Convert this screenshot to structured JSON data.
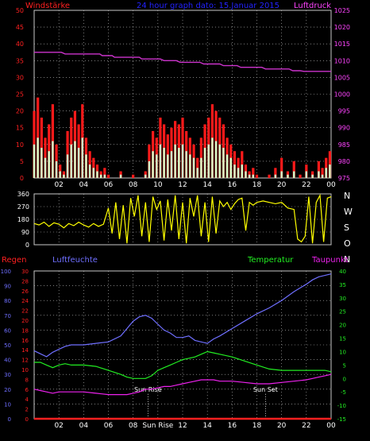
{
  "header": {
    "left_label": "Windstärke",
    "title": "24 hour graph dato: 15.Januar 2015",
    "right_label": "Luftdruck"
  },
  "direction_labels": [
    "N",
    "W",
    "S",
    "O",
    "N"
  ],
  "bottom_labels": {
    "regen": "Regen",
    "luftfeuchte": "Luftfeuchte",
    "temperatur": "Temperatur",
    "taupunkt": "Taupunkt",
    "sun_rise": "Sun Rise",
    "sun_set": "Sun Set"
  },
  "x_ticks": [
    "02",
    "04",
    "06",
    "08",
    "10",
    "12",
    "14",
    "16",
    "18",
    "20",
    "22",
    "00"
  ],
  "x_ticks_bottom": [
    "02",
    "04",
    "06",
    "08",
    "Sun Rise",
    "12",
    "14",
    "16",
    "18",
    "20",
    "22",
    "00"
  ],
  "colors": {
    "background": "#000000",
    "grid": "#c8c8c8",
    "title": "#2222ff",
    "wind_label": "#ff2020",
    "pressure": "#cc33cc",
    "pressure_axis": "#ff44ff",
    "gust": "#ff1a1a",
    "wind": "#ccffcc",
    "direction": "#ffff00",
    "humidity": "#6f6fff",
    "humidity_axis": "#6f6fff",
    "temperature": "#22ee22",
    "dewpoint": "#ee22ee",
    "rain": "#ff2020"
  },
  "chart_data": [
    {
      "type": "line",
      "name": "wind-pressure",
      "x_ticks": [
        "02",
        "04",
        "06",
        "08",
        "10",
        "12",
        "14",
        "16",
        "18",
        "20",
        "22",
        "00"
      ],
      "y_left_ticks": [
        0,
        5,
        10,
        15,
        20,
        25,
        30,
        35,
        40,
        45,
        50
      ],
      "y_right_ticks": [
        975,
        980,
        985,
        990,
        995,
        1000,
        1005,
        1010,
        1015,
        1020,
        1025
      ],
      "ylim_left": [
        0,
        50
      ],
      "ylim_right": [
        975,
        1025
      ],
      "xlim": [
        0,
        24
      ],
      "grid": true,
      "series": [
        {
          "name": "Luftdruck",
          "axis": "right",
          "x": [
            0,
            2.2,
            2.5,
            5.3,
            5.5,
            6.3,
            6.5,
            8.5,
            8.7,
            10.2,
            10.5,
            11.5,
            11.8,
            13.4,
            13.7,
            15,
            15.3,
            16.4,
            16.7,
            18.4,
            18.7,
            20.6,
            20.9,
            21.5,
            21.8,
            24
          ],
          "values": [
            1012.5,
            1012.5,
            1012,
            1012,
            1011.5,
            1011.5,
            1011,
            1011,
            1010.5,
            1010.5,
            1010,
            1010,
            1009.5,
            1009.5,
            1009,
            1009,
            1008.5,
            1008.5,
            1008,
            1008,
            1007.5,
            1007.5,
            1007,
            1007,
            1006.8,
            1006.8
          ]
        },
        {
          "name": "Windböen",
          "axis": "left",
          "x": [
            0,
            0.3,
            0.6,
            0.9,
            1.2,
            1.5,
            1.8,
            2.1,
            2.4,
            2.7,
            3,
            3.3,
            3.6,
            3.9,
            4.2,
            4.5,
            4.8,
            5.1,
            5.4,
            5.7,
            6,
            6.5,
            7,
            7.5,
            8,
            8.5,
            9,
            9.3,
            9.6,
            9.9,
            10.2,
            10.5,
            10.8,
            11.1,
            11.4,
            11.7,
            12,
            12.3,
            12.6,
            12.9,
            13.2,
            13.5,
            13.8,
            14.1,
            14.4,
            14.7,
            15,
            15.3,
            15.6,
            15.9,
            16.2,
            16.5,
            16.8,
            17.1,
            17.4,
            17.7,
            18,
            18.5,
            19,
            19.5,
            20,
            20.5,
            21,
            21.5,
            22,
            22.5,
            23,
            23.3,
            23.6,
            23.9
          ],
          "values": [
            20,
            24,
            18,
            12,
            16,
            22,
            10,
            4,
            2,
            14,
            18,
            20,
            16,
            22,
            12,
            8,
            6,
            4,
            2,
            3,
            1,
            0,
            2,
            0,
            1,
            0,
            2,
            10,
            14,
            12,
            18,
            16,
            13,
            15,
            17,
            16,
            18,
            14,
            12,
            10,
            6,
            12,
            16,
            18,
            22,
            20,
            18,
            16,
            12,
            10,
            8,
            6,
            8,
            4,
            2,
            3,
            1,
            0,
            1,
            3,
            6,
            2,
            5,
            1,
            4,
            2,
            5,
            3,
            6,
            8
          ]
        },
        {
          "name": "Wind",
          "axis": "left",
          "x": [
            0,
            0.3,
            0.6,
            0.9,
            1.2,
            1.5,
            1.8,
            2.1,
            2.4,
            2.7,
            3,
            3.3,
            3.6,
            3.9,
            4.2,
            4.5,
            4.8,
            5.1,
            5.4,
            5.7,
            6,
            6.5,
            7,
            7.5,
            8,
            8.5,
            9,
            9.3,
            9.6,
            9.9,
            10.2,
            10.5,
            10.8,
            11.1,
            11.4,
            11.7,
            12,
            12.3,
            12.6,
            12.9,
            13.2,
            13.5,
            13.8,
            14.1,
            14.4,
            14.7,
            15,
            15.3,
            15.6,
            15.9,
            16.2,
            16.5,
            16.8,
            17.1,
            17.4,
            17.7,
            18,
            18.5,
            19,
            19.5,
            20,
            20.5,
            21,
            21.5,
            22,
            22.5,
            23,
            23.3,
            23.6,
            23.9
          ],
          "values": [
            10,
            12,
            9,
            6,
            8,
            11,
            5,
            2,
            1,
            7,
            10,
            11,
            9,
            12,
            7,
            4,
            3,
            2,
            1,
            1,
            0,
            0,
            1,
            0,
            0,
            0,
            1,
            5,
            8,
            7,
            10,
            9,
            7,
            8,
            10,
            9,
            10,
            8,
            7,
            6,
            3,
            6,
            9,
            10,
            12,
            11,
            10,
            9,
            7,
            6,
            4,
            3,
            4,
            2,
            1,
            1,
            0,
            0,
            0,
            1,
            2,
            1,
            2,
            0,
            2,
            1,
            2,
            1,
            3,
            4
          ]
        }
      ]
    },
    {
      "type": "line",
      "name": "wind-direction",
      "y_left_ticks": [
        0,
        90,
        180,
        270,
        360
      ],
      "ylim": [
        0,
        360
      ],
      "xlim": [
        0,
        24
      ],
      "grid": true,
      "series": [
        {
          "name": "Windrichtung",
          "x": [
            0,
            0.4,
            0.8,
            1.2,
            1.6,
            2,
            2.4,
            2.8,
            3.2,
            3.6,
            4,
            4.4,
            4.8,
            5.2,
            5.6,
            6,
            6.3,
            6.6,
            6.9,
            7.2,
            7.5,
            7.8,
            8.1,
            8.4,
            8.7,
            9,
            9.3,
            9.6,
            9.9,
            10.2,
            10.5,
            10.8,
            11.1,
            11.4,
            11.7,
            12,
            12.3,
            12.6,
            12.9,
            13.2,
            13.5,
            13.8,
            14.1,
            14.4,
            14.7,
            15,
            15.3,
            15.6,
            15.9,
            16.2,
            16.5,
            16.8,
            17.1,
            17.4,
            17.7,
            18,
            18.5,
            19,
            19.5,
            20,
            20.5,
            21,
            21.3,
            21.6,
            21.9,
            22.2,
            22.5,
            22.8,
            23.1,
            23.4,
            23.7,
            24
          ],
          "values": [
            150,
            140,
            160,
            130,
            155,
            145,
            120,
            150,
            135,
            160,
            140,
            125,
            150,
            130,
            145,
            260,
            80,
            300,
            40,
            280,
            10,
            330,
            200,
            350,
            60,
            300,
            20,
            340,
            250,
            310,
            30,
            320,
            100,
            350,
            40,
            300,
            10,
            330,
            200,
            350,
            60,
            300,
            20,
            340,
            80,
            310,
            270,
            300,
            250,
            290,
            320,
            330,
            100,
            300,
            280,
            300,
            310,
            300,
            290,
            300,
            260,
            250,
            40,
            20,
            60,
            340,
            10,
            300,
            350,
            20,
            330,
            340
          ]
        }
      ]
    },
    {
      "type": "line",
      "name": "humidity-temperature",
      "y_left_ticks": [
        0,
        10,
        20,
        30,
        40,
        50,
        60,
        70,
        80,
        90,
        100
      ],
      "y_left2_ticks": [
        0,
        2,
        4,
        6,
        8,
        10,
        12,
        14,
        16,
        18,
        20,
        22,
        24,
        26,
        28,
        30
      ],
      "y_right_ticks": [
        -15,
        -10,
        -5,
        0,
        5,
        10,
        15,
        20,
        25,
        30,
        35,
        40
      ],
      "ylim_left": [
        0,
        100
      ],
      "ylim_right": [
        -15,
        40
      ],
      "xlim": [
        0,
        24
      ],
      "grid": true,
      "series": [
        {
          "name": "Luftfeuchte",
          "axis": "left",
          "x": [
            0,
            0.5,
            1,
            1.5,
            2,
            2.5,
            3,
            4,
            5,
            6,
            7,
            7.5,
            8,
            8.5,
            9,
            9.5,
            10,
            10.5,
            11,
            11.5,
            12,
            12.5,
            13,
            13.5,
            14,
            14.5,
            15,
            16,
            17,
            18,
            19,
            20,
            21,
            22,
            22.5,
            23,
            23.5,
            24
          ],
          "values": [
            46,
            44,
            42,
            45,
            47,
            49,
            50,
            50,
            51,
            52,
            56,
            61,
            66,
            69,
            70,
            68,
            64,
            60,
            58,
            55,
            55,
            56,
            53,
            52,
            51,
            54,
            56,
            61,
            66,
            71,
            75,
            80,
            86,
            91,
            94,
            96,
            97,
            98
          ]
        },
        {
          "name": "Temperatur",
          "axis": "right",
          "x": [
            0,
            0.5,
            1,
            1.5,
            2,
            2.5,
            3,
            4,
            5,
            6,
            7,
            7.5,
            8,
            8.5,
            9,
            9.5,
            10,
            10.5,
            11,
            11.5,
            12,
            12.5,
            13,
            13.5,
            14,
            14.5,
            15,
            16,
            17,
            18,
            19,
            20,
            21,
            22,
            22.5,
            23,
            23.5,
            24
          ],
          "values": [
            6,
            6,
            5,
            4,
            5,
            5.5,
            5,
            5,
            4.5,
            3,
            1.5,
            0.5,
            0,
            0,
            0,
            1,
            3,
            4,
            5,
            6,
            7,
            7.5,
            8,
            9,
            10,
            9.5,
            9,
            8,
            6.5,
            5,
            3.5,
            3,
            3,
            3,
            3,
            3,
            3,
            2.5
          ]
        },
        {
          "name": "Taupunkt",
          "axis": "right",
          "x": [
            0,
            0.5,
            1,
            1.5,
            2,
            2.5,
            3,
            4,
            5,
            6,
            7,
            7.5,
            8,
            8.5,
            9,
            9.5,
            10,
            10.5,
            11,
            11.5,
            12,
            12.5,
            13,
            13.5,
            14,
            14.5,
            15,
            16,
            17,
            18,
            19,
            20,
            21,
            22,
            22.5,
            23,
            23.5,
            24
          ],
          "values": [
            -4,
            -4.5,
            -5,
            -5.5,
            -5,
            -5,
            -5,
            -5,
            -5.5,
            -6,
            -6,
            -6,
            -5.5,
            -5,
            -4,
            -4,
            -3.5,
            -3,
            -3,
            -2.5,
            -2,
            -1.5,
            -1,
            -0.5,
            -0.5,
            -0.5,
            -1,
            -1,
            -1.5,
            -2,
            -2,
            -1.5,
            -1,
            -0.5,
            0,
            0.5,
            1,
            1.5
          ]
        },
        {
          "name": "Regen",
          "axis": "left",
          "x": [
            0,
            24
          ],
          "values": [
            0,
            0
          ]
        }
      ],
      "markers": [
        {
          "label": "Sun Rise",
          "x": 9.2
        },
        {
          "label": "Sun Set",
          "x": 18.7
        }
      ]
    }
  ]
}
